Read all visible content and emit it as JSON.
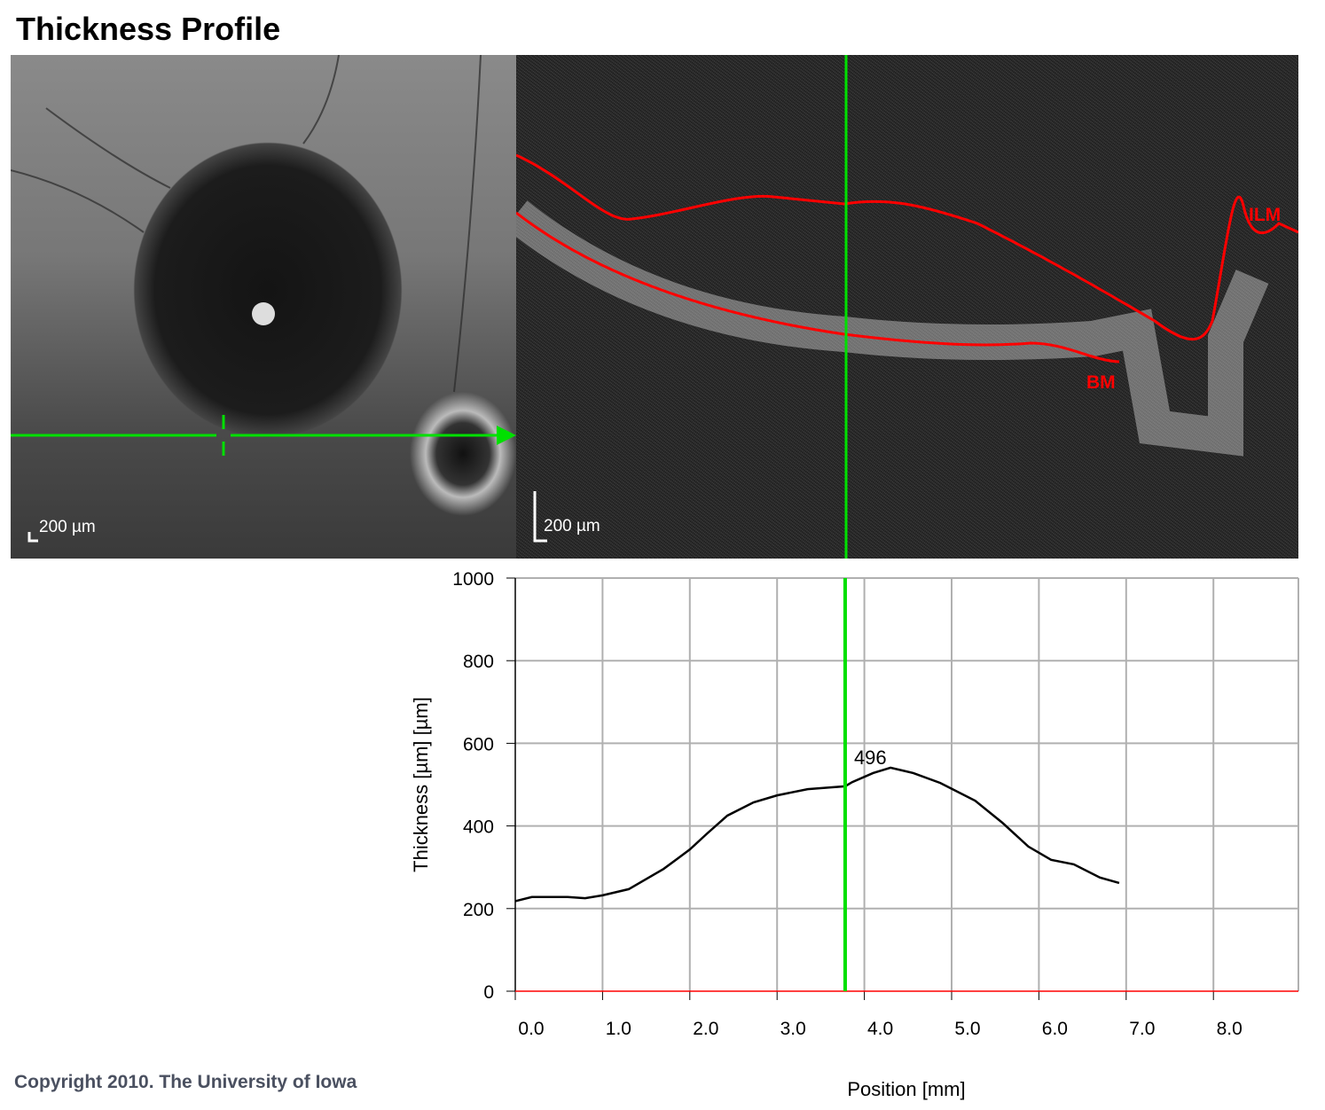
{
  "title": "Thickness Profile",
  "fundus": {
    "scale_label": "200 µm"
  },
  "oct": {
    "scale_label": "200 µm",
    "layer_labels": {
      "ilm": "ILM",
      "bm": "BM"
    }
  },
  "colors": {
    "cursor": "#00e000",
    "layer": "#ff0000"
  },
  "copyright": "Copyright 2010. The University of Iowa",
  "chart_data": {
    "type": "line",
    "xlabel": "Position [mm]",
    "ylabel": "Thickness [µm] [µm]",
    "xlim": [
      0,
      9
    ],
    "ylim": [
      0,
      1000
    ],
    "xticks": [
      "0.0",
      "1.0",
      "2.0",
      "3.0",
      "4.0",
      "5.0",
      "6.0",
      "7.0",
      "8.0"
    ],
    "yticks": [
      "0",
      "200",
      "400",
      "600",
      "800",
      "1000"
    ],
    "grid": true,
    "cursor": {
      "x": 3.78,
      "value_label": "496"
    },
    "x": [
      0,
      0.19,
      0.6,
      0.8,
      1.0,
      1.3,
      1.7,
      2.0,
      2.2,
      2.43,
      2.73,
      3.0,
      3.35,
      3.78,
      3.86,
      4.1,
      4.3,
      4.56,
      4.87,
      5.27,
      5.58,
      5.88,
      6.14,
      6.4,
      6.7,
      6.92
    ],
    "y": [
      218,
      228,
      228,
      225,
      232,
      247,
      296,
      343,
      382,
      425,
      457,
      474,
      489,
      496,
      506,
      528,
      541,
      528,
      504,
      461,
      408,
      350,
      318,
      307,
      275,
      262
    ]
  }
}
